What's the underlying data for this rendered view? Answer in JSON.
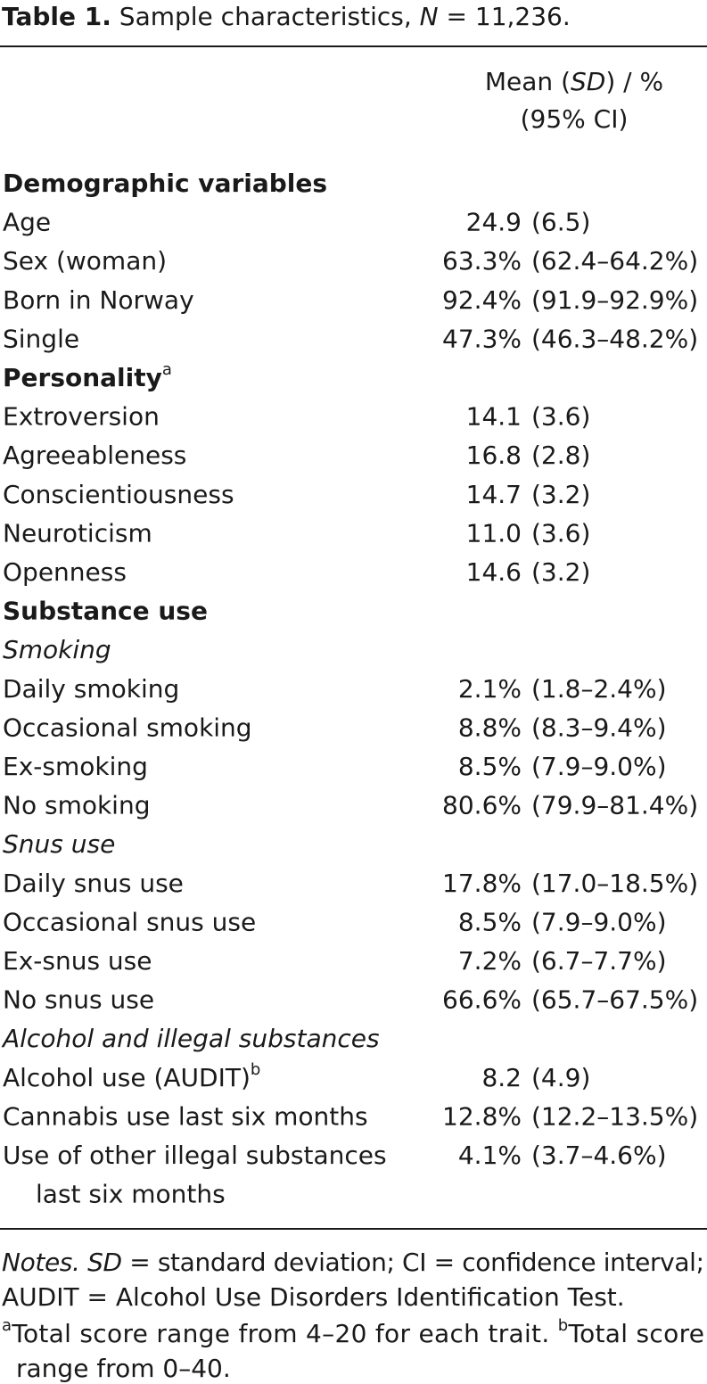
{
  "title": [
    {
      "text": "Table 1.",
      "style": "bold"
    },
    {
      "text": " Sample characteristics, "
    },
    {
      "text": "N",
      "style": "italic"
    },
    {
      "text": " = 11,236."
    }
  ],
  "header": [
    [
      {
        "text": "Mean ("
      },
      {
        "text": "SD",
        "style": "italic"
      },
      {
        "text": ") / %"
      }
    ],
    [
      {
        "text": "(95% CI)"
      }
    ]
  ],
  "rows": [
    {
      "kind": "section",
      "label": "Demographic variables"
    },
    {
      "kind": "row",
      "label": "Age",
      "estimate": "24.9",
      "interval": "(6.5)"
    },
    {
      "kind": "row",
      "label": "Sex (woman)",
      "estimate": "63.3%",
      "interval": "(62.4–64.2%)"
    },
    {
      "kind": "row",
      "label": "Born in Norway",
      "estimate": "92.4%",
      "interval": "(91.9–92.9%)"
    },
    {
      "kind": "row",
      "label": "Single",
      "estimate": "47.3%",
      "interval": "(46.3–48.2%)"
    },
    {
      "kind": "section",
      "label": "Personality",
      "superscript": "a"
    },
    {
      "kind": "row",
      "label": "Extroversion",
      "estimate": "14.1",
      "interval": "(3.6)"
    },
    {
      "kind": "row",
      "label": "Agreeableness",
      "estimate": "16.8",
      "interval": "(2.8)"
    },
    {
      "kind": "row",
      "label": "Conscientiousness",
      "estimate": "14.7",
      "interval": "(3.2)"
    },
    {
      "kind": "row",
      "label": "Neuroticism",
      "estimate": "11.0",
      "interval": "(3.6)"
    },
    {
      "kind": "row",
      "label": "Openness",
      "estimate": "14.6",
      "interval": "(3.2)"
    },
    {
      "kind": "section",
      "label": "Substance use"
    },
    {
      "kind": "subsection",
      "label": "Smoking"
    },
    {
      "kind": "row",
      "label": "Daily smoking",
      "estimate": "2.1%",
      "interval": "(1.8–2.4%)"
    },
    {
      "kind": "row",
      "label": "Occasional smoking",
      "estimate": "8.8%",
      "interval": "(8.3–9.4%)"
    },
    {
      "kind": "row",
      "label": "Ex-smoking",
      "estimate": "8.5%",
      "interval": "(7.9–9.0%)"
    },
    {
      "kind": "row",
      "label": "No smoking",
      "estimate": "80.6%",
      "interval": "(79.9–81.4%)"
    },
    {
      "kind": "subsection",
      "label": "Snus use"
    },
    {
      "kind": "row",
      "label": "Daily snus use",
      "estimate": "17.8%",
      "interval": "(17.0–18.5%)"
    },
    {
      "kind": "row",
      "label": "Occasional snus use",
      "estimate": "8.5%",
      "interval": "(7.9–9.0%)"
    },
    {
      "kind": "row",
      "label": "Ex-snus use",
      "estimate": "7.2%",
      "interval": "(6.7–7.7%)"
    },
    {
      "kind": "row",
      "label": "No snus use",
      "estimate": "66.6%",
      "interval": "(65.7–67.5%)"
    },
    {
      "kind": "subsection",
      "label": "Alcohol and illegal substances"
    },
    {
      "kind": "row",
      "label": "Alcohol use (AUDIT)",
      "superscript": "b",
      "estimate": "8.2",
      "interval": "(4.9)"
    },
    {
      "kind": "row",
      "label": "Cannabis use last six months",
      "estimate": "12.8%",
      "interval": "(12.2–13.5%)"
    },
    {
      "kind": "row",
      "label": "Use of other illegal substances",
      "label_continued": "last six months",
      "estimate": "4.1%",
      "interval": "(3.7–4.6%)"
    }
  ],
  "notes": [
    [
      {
        "text": "Notes. ",
        "style": "italic"
      },
      {
        "text": "SD",
        "style": "italic"
      },
      {
        "text": " = standard deviation; CI = confidence interval;"
      }
    ],
    [
      {
        "text": "AUDIT = Alcohol Use Disorders Identification Test."
      }
    ],
    [
      {
        "text": "a",
        "style": "sup"
      },
      {
        "text": "Total score range from 4–20 for each trait. "
      },
      {
        "text": "b",
        "style": "sup"
      },
      {
        "text": "Total score"
      }
    ],
    [
      {
        "text": "range from 0–40."
      }
    ]
  ]
}
